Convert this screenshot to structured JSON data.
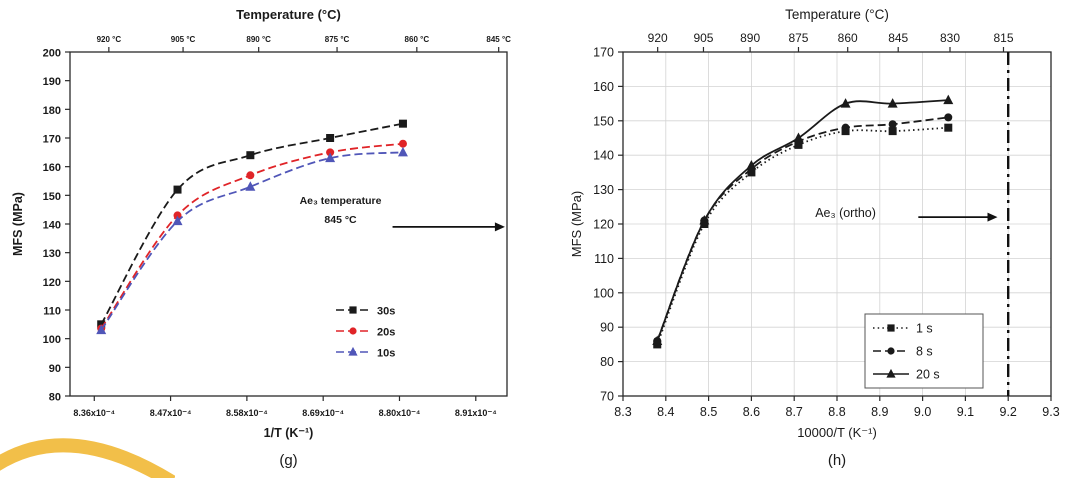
{
  "figure": {
    "left_caption": "(g)",
    "right_caption": "(h)",
    "background": "#ffffff",
    "corner_decoration_color": "#f2bf49"
  },
  "chart_data": [
    {
      "type": "line",
      "title": "Temperature (°C)",
      "xlabel": "1/T (K⁻¹)",
      "ylabel": "MFS (MPa)",
      "xlim": [
        8.325,
        8.955
      ],
      "ylim": [
        80,
        200
      ],
      "ytick_step": 10,
      "grid": false,
      "xticks": [
        8.36,
        8.47,
        8.58,
        8.69,
        8.8,
        8.91
      ],
      "xtick_labels": [
        "8.36x10⁻⁴",
        "8.47x10⁻⁴",
        "8.58x10⁻⁴",
        "8.69x10⁻⁴",
        "8.80x10⁻⁴",
        "8.91x10⁻⁴"
      ],
      "top_axis": {
        "ticks": [
          {
            "x": 8.381,
            "label": "920 °C"
          },
          {
            "x": 8.488,
            "label": "905 °C"
          },
          {
            "x": 8.597,
            "label": "890 °C"
          },
          {
            "x": 8.71,
            "label": "875 °C"
          },
          {
            "x": 8.825,
            "label": "860 °C"
          },
          {
            "x": 8.943,
            "label": "845 °C"
          }
        ]
      },
      "series": [
        {
          "name": "30s",
          "color": "#1a1a1a",
          "marker": "square",
          "line": "dashed",
          "x": [
            8.37,
            8.48,
            8.585,
            8.7,
            8.805
          ],
          "y": [
            105,
            152,
            164,
            170,
            175
          ]
        },
        {
          "name": "20s",
          "color": "#e02428",
          "marker": "circle",
          "line": "dashed",
          "x": [
            8.37,
            8.48,
            8.585,
            8.7,
            8.805
          ],
          "y": [
            103.5,
            143,
            157,
            165,
            168
          ]
        },
        {
          "name": "10s",
          "color": "#5056b8",
          "marker": "triangle",
          "line": "dashed",
          "x": [
            8.37,
            8.48,
            8.585,
            8.7,
            8.805
          ],
          "y": [
            103,
            141,
            153,
            163,
            165
          ]
        }
      ],
      "annotation": {
        "lines": [
          "Ae₃ temperature",
          "845 °C"
        ],
        "x": 8.715,
        "y": 147,
        "arrow": {
          "x1": 8.79,
          "x2": 8.952,
          "y": 139
        }
      },
      "legend": {
        "border": false,
        "items": [
          "30s",
          "20s",
          "10s"
        ]
      }
    },
    {
      "type": "line",
      "title": "Temperature (°C)",
      "xlabel": "10000/T (K⁻¹)",
      "ylabel": "MFS (MPa)",
      "xlim": [
        8.3,
        9.3
      ],
      "ylim": [
        70,
        170
      ],
      "ytick_step": 10,
      "grid": true,
      "xticks": [
        8.3,
        8.4,
        8.5,
        8.6,
        8.7,
        8.8,
        8.9,
        9.0,
        9.1,
        9.2,
        9.3
      ],
      "xtick_labels": [
        "8.3",
        "8.4",
        "8.5",
        "8.6",
        "8.7",
        "8.8",
        "8.9",
        "9.0",
        "9.1",
        "9.2",
        "9.3"
      ],
      "top_axis": {
        "ticks": [
          {
            "x": 8.381,
            "label": "920"
          },
          {
            "x": 8.488,
            "label": "905"
          },
          {
            "x": 8.597,
            "label": "890"
          },
          {
            "x": 8.71,
            "label": "875"
          },
          {
            "x": 8.825,
            "label": "860"
          },
          {
            "x": 8.943,
            "label": "845"
          },
          {
            "x": 9.064,
            "label": "830"
          },
          {
            "x": 9.189,
            "label": "815"
          }
        ]
      },
      "vline": {
        "x": 9.2,
        "style": "dashdot"
      },
      "series": [
        {
          "name": "1 s",
          "color": "#1a1a1a",
          "marker": "square",
          "line": "dotted",
          "x": [
            8.38,
            8.49,
            8.6,
            8.71,
            8.82,
            8.93,
            9.06
          ],
          "y": [
            85,
            120,
            135,
            143,
            147,
            147,
            148
          ]
        },
        {
          "name": "8 s",
          "color": "#1a1a1a",
          "marker": "circle",
          "line": "dashed",
          "x": [
            8.38,
            8.49,
            8.6,
            8.71,
            8.82,
            8.93,
            9.06
          ],
          "y": [
            86,
            121,
            136,
            144,
            148,
            149,
            151
          ]
        },
        {
          "name": "20 s",
          "color": "#1a1a1a",
          "marker": "triangle",
          "line": "solid",
          "x": [
            8.38,
            8.49,
            8.6,
            8.71,
            8.82,
            8.93,
            9.06
          ],
          "y": [
            86,
            121,
            137,
            145,
            155,
            155,
            156
          ]
        }
      ],
      "annotation": {
        "lines": [
          "Ae₃ (ortho)"
        ],
        "x": 8.82,
        "y": 122,
        "arrow": {
          "x1": 8.99,
          "x2": 9.175,
          "y": 122
        }
      },
      "legend": {
        "border": true,
        "items": [
          "1 s",
          "8 s",
          "20 s"
        ]
      }
    }
  ]
}
